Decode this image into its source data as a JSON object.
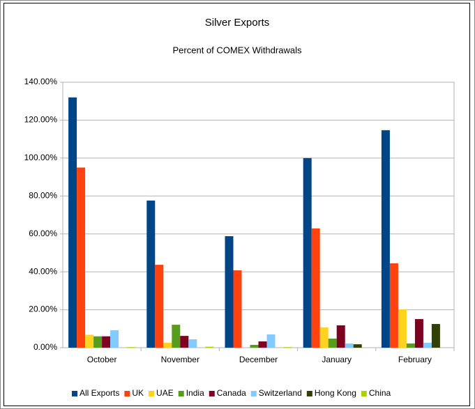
{
  "chart_data": {
    "type": "bar",
    "title": "Silver Exports",
    "subtitle": "Percent of COMEX Withdrawals",
    "categories": [
      "October",
      "November",
      "December",
      "January",
      "February"
    ],
    "series": [
      {
        "name": "All Exports",
        "color": "#004586",
        "values": [
          132,
          77.6,
          58.8,
          100,
          114.7
        ]
      },
      {
        "name": "UK",
        "color": "#ff420e",
        "values": [
          95,
          43.7,
          40.8,
          62.9,
          44.5
        ]
      },
      {
        "name": "UAE",
        "color": "#ffd320",
        "values": [
          6.8,
          2.6,
          0,
          10.7,
          20.2
        ]
      },
      {
        "name": "India",
        "color": "#579d1c",
        "values": [
          6,
          12.1,
          1.5,
          4.8,
          2.2
        ]
      },
      {
        "name": "Canada",
        "color": "#7e0021",
        "values": [
          6,
          6.2,
          3.3,
          11.8,
          15.1
        ]
      },
      {
        "name": "Switzerland",
        "color": "#83caff",
        "values": [
          9.2,
          4.4,
          7,
          2.2,
          2.6
        ]
      },
      {
        "name": "Hong Kong",
        "color": "#314004",
        "values": [
          0,
          0,
          0,
          1.8,
          12.5
        ]
      },
      {
        "name": "China",
        "color": "#aecf00",
        "values": [
          0.3,
          0.5,
          0.3,
          0,
          0
        ]
      }
    ],
    "ylim": [
      0,
      140
    ],
    "yticks": [
      {
        "value": 0,
        "label": "0.00%"
      },
      {
        "value": 20,
        "label": "20.00%"
      },
      {
        "value": 40,
        "label": "40.00%"
      },
      {
        "value": 60,
        "label": "60.00%"
      },
      {
        "value": 80,
        "label": "80.00%"
      },
      {
        "value": 100,
        "label": "100.00%"
      },
      {
        "value": 120,
        "label": "120.00%"
      },
      {
        "value": 140,
        "label": "140.00%"
      }
    ],
    "grid": true,
    "legend": "bottom"
  }
}
